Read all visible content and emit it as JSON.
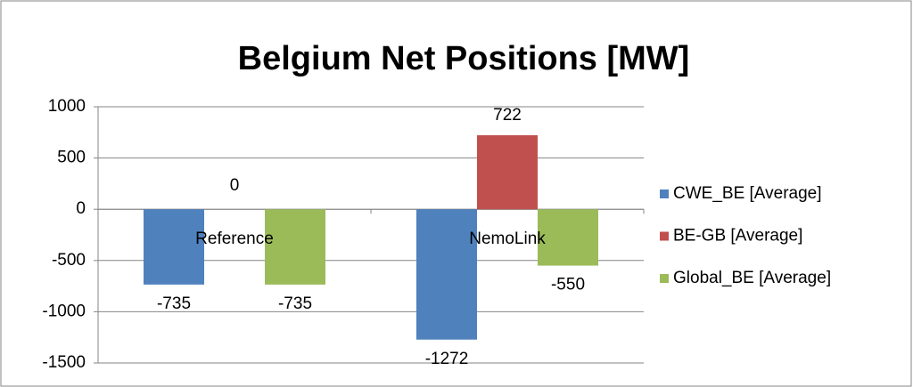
{
  "chart_data": {
    "type": "bar",
    "title": "Belgium Net Positions [MW]",
    "categories": [
      "Reference",
      "NemoLink"
    ],
    "series": [
      {
        "name": "CWE_BE [Average]",
        "color": "#4f81bd",
        "values": [
          -735,
          -1272
        ]
      },
      {
        "name": "BE-GB [Average]",
        "color": "#c0504d",
        "values": [
          0,
          722
        ]
      },
      {
        "name": "Global_BE [Average]",
        "color": "#9bbb59",
        "values": [
          -735,
          -550
        ]
      }
    ],
    "ylim": [
      -1500,
      1000
    ],
    "yticks": [
      -1500,
      -1000,
      -500,
      0,
      500,
      1000
    ],
    "grid": true,
    "legend": "right"
  }
}
